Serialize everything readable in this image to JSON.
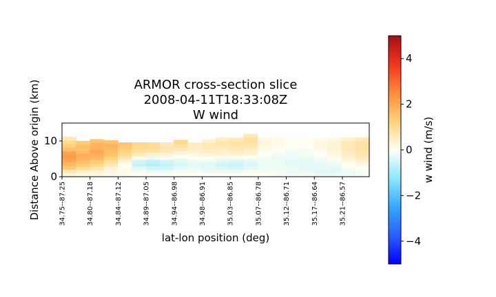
{
  "chart_data": {
    "type": "heatmap",
    "title": [
      "ARMOR cross-section slice",
      "2008-04-11T18:33:08Z",
      "W wind"
    ],
    "xlabel": "lat-lon position (deg)",
    "ylabel": "Distance Above origin (km)",
    "x_tick_labels": [
      "34.75--87.25",
      "34.80--87.18",
      "34.84--87.12",
      "34.89--87.05",
      "34.94--86.98",
      "34.98--86.91",
      "35.03--86.85",
      "35.07--86.78",
      "35.12--86.71",
      "35.17--86.64",
      "35.21--86.57"
    ],
    "y_ticks": [
      0,
      10
    ],
    "ylim": [
      0,
      15
    ],
    "z_levels_km": [
      1,
      2,
      3,
      4,
      5,
      6,
      7,
      8,
      9,
      10,
      11
    ],
    "colorbar": {
      "label": "w wind (m/s)",
      "vmin": -5,
      "vmax": 5,
      "ticks": [
        4,
        2,
        0,
        -2,
        -4
      ],
      "tick_labels": [
        "4",
        "2",
        "0",
        "−2",
        "−4"
      ],
      "colormap": "RdYlBu_r"
    },
    "columns": [
      {
        "top": 11.2,
        "vals": [
          0.3,
          0.6,
          1.4,
          1.7,
          2.0,
          2.2,
          2.1,
          1.6,
          1.3,
          1.0,
          0.6
        ]
      },
      {
        "top": 10.0,
        "vals": [
          0.2,
          0.4,
          0.9,
          1.3,
          1.6,
          1.8,
          1.9,
          1.7,
          1.5,
          1.6,
          1.3
        ]
      },
      {
        "top": 10.5,
        "vals": [
          0.2,
          0.3,
          0.7,
          1.1,
          1.4,
          1.7,
          1.9,
          2.0,
          1.8,
          1.8,
          1.5
        ]
      },
      {
        "top": 10.2,
        "vals": [
          0.1,
          0.2,
          0.3,
          0.6,
          0.9,
          1.2,
          1.5,
          1.6,
          1.7,
          1.8,
          1.5
        ]
      },
      {
        "top": 9.6,
        "vals": [
          0.1,
          0.1,
          0.1,
          0.0,
          0.3,
          0.7,
          1.0,
          1.2,
          1.4,
          1.5
        ]
      },
      {
        "top": 9.6,
        "vals": [
          0.0,
          -0.1,
          -0.3,
          -0.6,
          -0.5,
          0.1,
          0.6,
          0.9,
          1.0,
          1.1
        ]
      },
      {
        "top": 9.6,
        "vals": [
          0.0,
          -0.2,
          -0.5,
          -0.8,
          -0.7,
          -0.2,
          0.4,
          0.8,
          1.0,
          1.0
        ]
      },
      {
        "top": 9.6,
        "vals": [
          0.0,
          -0.2,
          -0.5,
          -0.6,
          -0.5,
          -0.1,
          0.3,
          0.6,
          0.7,
          0.6
        ]
      },
      {
        "top": 10.3,
        "vals": [
          0.0,
          -0.1,
          -0.3,
          -0.4,
          -0.3,
          0.0,
          0.3,
          0.6,
          0.9,
          1.0
        ]
      },
      {
        "top": 9.6,
        "vals": [
          0.0,
          -0.1,
          -0.2,
          -0.3,
          -0.2,
          0.0,
          0.2,
          0.4,
          0.5,
          0.5
        ]
      },
      {
        "top": 10.5,
        "vals": [
          0.0,
          -0.2,
          -0.3,
          -0.3,
          -0.2,
          0.0,
          0.3,
          0.5,
          0.6,
          0.6,
          0.4
        ]
      },
      {
        "top": 11.0,
        "vals": [
          0.0,
          -0.2,
          -0.4,
          -0.5,
          -0.3,
          0.1,
          0.3,
          0.5,
          0.6,
          0.7,
          0.5
        ]
      },
      {
        "top": 10.9,
        "vals": [
          0.0,
          -0.2,
          -0.5,
          -0.6,
          -0.4,
          0.1,
          0.4,
          0.6,
          0.7,
          0.8,
          0.6
        ]
      },
      {
        "top": 12.0,
        "vals": [
          0.0,
          -0.1,
          -0.3,
          -0.4,
          -0.3,
          0.0,
          0.3,
          0.5,
          0.7,
          0.8,
          0.9,
          0.6
        ]
      },
      {
        "top": 11.0,
        "vals": [
          0.0,
          -0.1,
          -0.2,
          -0.2,
          -0.2,
          -0.1,
          0.0,
          0.1,
          0.2,
          0.3,
          0.2
        ]
      },
      {
        "top": 11.0,
        "vals": [
          -0.1,
          -0.1,
          -0.2,
          -0.2,
          -0.2,
          -0.2,
          -0.1,
          0.0,
          0.1,
          0.1,
          0.1
        ]
      },
      {
        "top": 11.0,
        "vals": [
          -0.1,
          -0.2,
          -0.2,
          -0.3,
          -0.3,
          -0.2,
          -0.2,
          -0.1,
          0.0,
          0.0,
          0.0
        ]
      },
      {
        "top": 11.0,
        "vals": [
          -0.1,
          -0.2,
          -0.3,
          -0.3,
          -0.3,
          -0.2,
          -0.1,
          -0.1,
          0.0,
          0.0,
          0.0
        ]
      },
      {
        "top": 11.0,
        "vals": [
          -0.2,
          -0.3,
          -0.3,
          -0.3,
          -0.2,
          -0.1,
          0.0,
          0.1,
          0.2,
          0.2,
          0.1
        ]
      },
      {
        "top": 11.0,
        "vals": [
          -0.2,
          -0.3,
          -0.3,
          -0.2,
          -0.1,
          0.1,
          0.2,
          0.3,
          0.3,
          0.3,
          0.2
        ]
      },
      {
        "top": 11.0,
        "vals": [
          -0.2,
          -0.2,
          -0.1,
          0.0,
          0.2,
          0.4,
          0.5,
          0.6,
          0.6,
          0.6,
          0.4
        ]
      },
      {
        "top": 11.0,
        "vals": [
          -0.1,
          -0.1,
          0.0,
          0.2,
          0.4,
          0.6,
          0.7,
          0.8,
          0.8,
          0.8,
          0.6
        ]
      }
    ]
  }
}
